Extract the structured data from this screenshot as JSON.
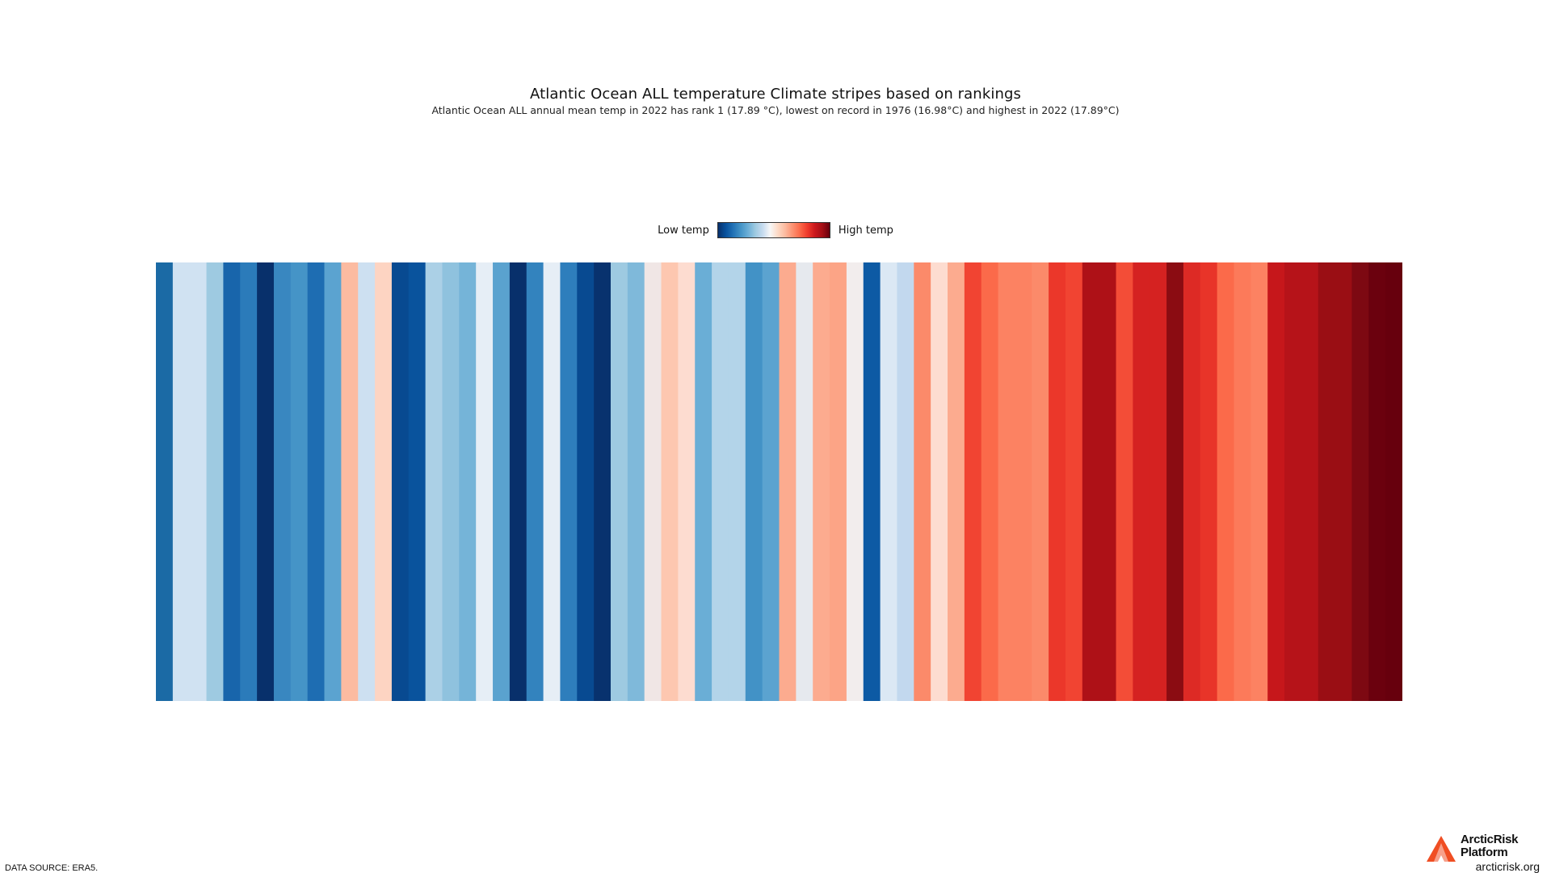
{
  "chart_data": {
    "type": "heatmap",
    "title": "Atlantic Ocean ALL temperature Climate stripes based on rankings",
    "subtitle": "Atlantic Ocean ALL annual mean temp in 2022 has rank 1 (17.89 °C), lowest on record in 1976 (16.98°C) and highest in 2022 (17.89°C)",
    "legend": {
      "low_label": "Low temp",
      "high_label": "High temp",
      "placement": "top-center"
    },
    "colormap": [
      "#08306b",
      "#08519c",
      "#2171b5",
      "#4292c6",
      "#6baed6",
      "#9ecae1",
      "#c6dbef",
      "#f7f7f7",
      "#fddbc7",
      "#fcbba1",
      "#fc9272",
      "#fb6a4a",
      "#ef3b2c",
      "#cb181d",
      "#a50f15",
      "#67000d"
    ],
    "stripe_colors": [
      "#1b6aa5",
      "#d0e2f2",
      "#d0e2f2",
      "#9ecae1",
      "#1865ab",
      "#2b7bba",
      "#08306b",
      "#3987c0",
      "#4594c7",
      "#1e6db2",
      "#5ba3d0",
      "#fcbba1",
      "#cde0f1",
      "#fdd4c2",
      "#084a91",
      "#09539d",
      "#abd0e6",
      "#8fc2de",
      "#75b4d8",
      "#e6eef6",
      "#5aa2cf",
      "#08306b",
      "#3383be",
      "#e6eef6",
      "#2e7ebc",
      "#084a91",
      "#08326e",
      "#9ecae1",
      "#7fb9da",
      "#f0e6e5",
      "#fdc7b0",
      "#fddcd0",
      "#6aaed6",
      "#b3d4e9",
      "#b3d4e9",
      "#4292c6",
      "#5ba3d0",
      "#fcab8f",
      "#e6e9ee",
      "#fcab8f",
      "#fca486",
      "#f2eded",
      "#0d5aa4",
      "#dbe8f4",
      "#c2d8ee",
      "#fb8a6a",
      "#fddcd0",
      "#fcab8f",
      "#f14432",
      "#fb6a4a",
      "#fc8262",
      "#fc8262",
      "#fb8a6a",
      "#eb372a",
      "#f14432",
      "#ae1117",
      "#ae1117",
      "#f34d37",
      "#d52221",
      "#d52221",
      "#8b0c12",
      "#dd2a25",
      "#e83429",
      "#fb6a4a",
      "#fc7a5a",
      "#fc8262",
      "#c6171b",
      "#b61319",
      "#b61319",
      "#9a0e14",
      "#9a0e14",
      "#7d0912",
      "#6b010e",
      "#67000d"
    ]
  },
  "footer": {
    "source": "DATA SOURCE: ERA5.",
    "brand_line1": "ArcticRisk",
    "brand_line2": "Platform",
    "url": "arcticrisk.org"
  }
}
